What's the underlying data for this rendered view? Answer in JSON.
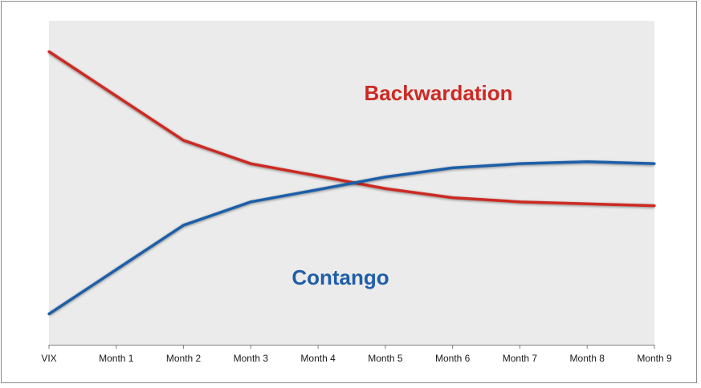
{
  "chart_data": {
    "type": "line",
    "categories": [
      "VIX",
      "Month 1",
      "Month 2",
      "Month 3",
      "Month 4",
      "Month 5",
      "Month 6",
      "Month 7",
      "Month 8",
      "Month 9"
    ],
    "series": [
      {
        "name": "Backwardation",
        "color": "#cc2a24",
        "values": [
          90.5,
          76.8,
          63.1,
          55.9,
          52.1,
          48.2,
          45.4,
          44.1,
          43.5,
          42.9
        ]
      },
      {
        "name": "Contango",
        "color": "#1f5ea8",
        "values": [
          9.5,
          23.2,
          36.9,
          44.1,
          47.9,
          51.8,
          54.6,
          55.9,
          56.5,
          55.9
        ]
      }
    ],
    "ylim": [
      0,
      100
    ],
    "grid": false,
    "legend": "inline labels",
    "background": "#ebebeb",
    "xlabel": "",
    "ylabel": ""
  }
}
